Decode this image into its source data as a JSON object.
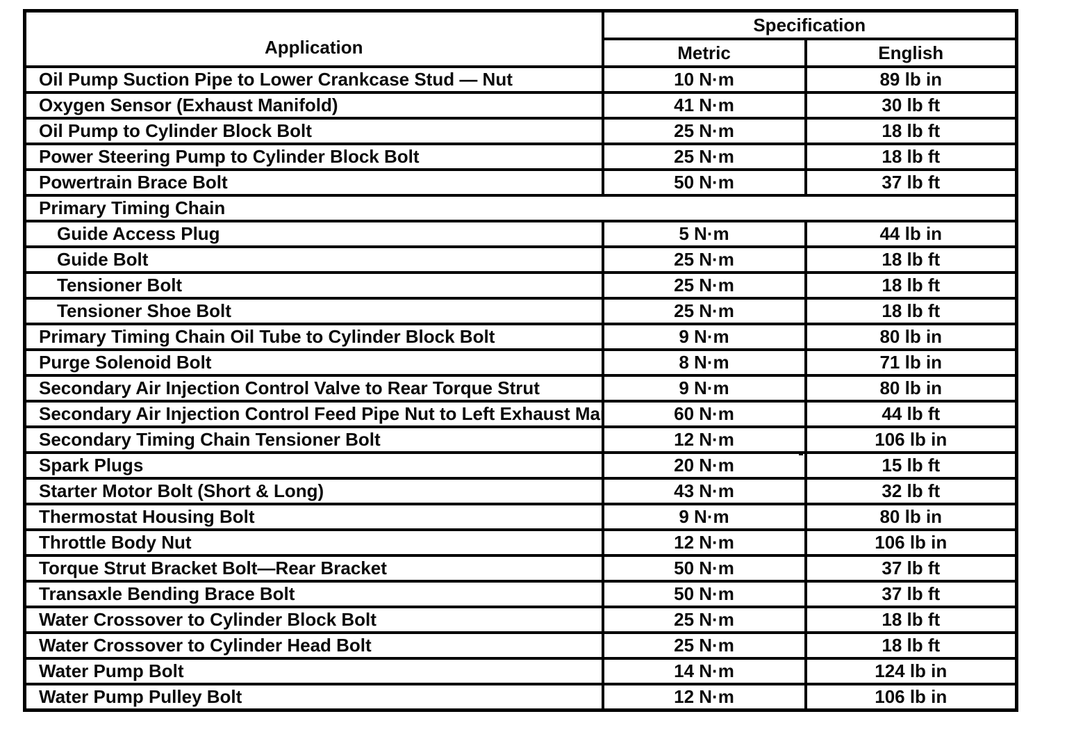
{
  "table": {
    "header": {
      "application": "Application",
      "specification": "Specification",
      "metric": "Metric",
      "english": "English"
    },
    "rows": [
      {
        "type": "data",
        "indent": false,
        "application": "Oil Pump Suction Pipe to Lower Crankcase Stud — Nut",
        "metric": "10 N·m",
        "english": "89 lb in"
      },
      {
        "type": "data",
        "indent": false,
        "application": "Oxygen Sensor (Exhaust Manifold)",
        "metric": "41 N·m",
        "english": "30 lb ft"
      },
      {
        "type": "data",
        "indent": false,
        "application": "Oil Pump to Cylinder Block Bolt",
        "metric": "25 N·m",
        "english": "18 lb ft"
      },
      {
        "type": "data",
        "indent": false,
        "application": "Power Steering Pump to Cylinder Block Bolt",
        "metric": "25 N·m",
        "english": "18 lb ft"
      },
      {
        "type": "data",
        "indent": false,
        "application": "Powertrain Brace Bolt",
        "metric": "50 N·m",
        "english": "37 lb ft"
      },
      {
        "type": "section",
        "indent": false,
        "application": "Primary Timing Chain",
        "metric": "",
        "english": ""
      },
      {
        "type": "data",
        "indent": true,
        "application": "Guide Access Plug",
        "metric": "5 N·m",
        "english": "44 lb in"
      },
      {
        "type": "data",
        "indent": true,
        "application": "Guide Bolt",
        "metric": "25 N·m",
        "english": "18 lb ft"
      },
      {
        "type": "data",
        "indent": true,
        "application": "Tensioner Bolt",
        "metric": "25 N·m",
        "english": "18 lb ft"
      },
      {
        "type": "data",
        "indent": true,
        "application": "Tensioner Shoe Bolt",
        "metric": "25 N·m",
        "english": "18 lb ft"
      },
      {
        "type": "data",
        "indent": false,
        "application": "Primary Timing Chain Oil Tube to Cylinder Block Bolt",
        "metric": "9 N·m",
        "english": "80 lb in"
      },
      {
        "type": "data",
        "indent": false,
        "application": "Purge Solenoid Bolt",
        "metric": "8 N·m",
        "english": "71 lb in"
      },
      {
        "type": "data",
        "indent": false,
        "application": "Secondary Air Injection Control Valve to Rear Torque Strut",
        "metric": "9 N·m",
        "english": "80 lb in"
      },
      {
        "type": "data",
        "indent": false,
        "application": "Secondary Air Injection Control Feed Pipe Nut to Left Exhaust Manifold",
        "metric": "60 N·m",
        "english": "44 lb ft"
      },
      {
        "type": "data",
        "indent": false,
        "application": "Secondary Timing Chain Tensioner Bolt",
        "metric": "12 N·m",
        "english": "106 lb in"
      },
      {
        "type": "data",
        "indent": false,
        "application": "Spark Plugs",
        "metric": "20 N·m",
        "english": "15 lb ft"
      },
      {
        "type": "data",
        "indent": false,
        "application": "Starter Motor Bolt (Short & Long)",
        "metric": "43 N·m",
        "english": "32 lb ft"
      },
      {
        "type": "data",
        "indent": false,
        "application": "Thermostat Housing Bolt",
        "metric": "9 N·m",
        "english": "80 lb in"
      },
      {
        "type": "data",
        "indent": false,
        "application": "Throttle Body Nut",
        "metric": "12 N·m",
        "english": "106 lb in"
      },
      {
        "type": "data",
        "indent": false,
        "application": "Torque Strut Bracket Bolt—Rear Bracket",
        "metric": "50 N·m",
        "english": "37 lb ft"
      },
      {
        "type": "data",
        "indent": false,
        "application": "Transaxle Bending Brace Bolt",
        "metric": "50 N·m",
        "english": "37 lb ft"
      },
      {
        "type": "data",
        "indent": false,
        "application": "Water Crossover to Cylinder Block Bolt",
        "metric": "25 N·m",
        "english": "18 lb ft"
      },
      {
        "type": "data",
        "indent": false,
        "application": "Water Crossover to Cylinder Head Bolt",
        "metric": "25 N·m",
        "english": "18 lb ft"
      },
      {
        "type": "data",
        "indent": false,
        "application": "Water Pump Bolt",
        "metric": "14 N·m",
        "english": "124 lb in"
      },
      {
        "type": "data",
        "indent": false,
        "application": "Water Pump Pulley Bolt",
        "metric": "12 N·m",
        "english": "106 lb in"
      }
    ]
  }
}
